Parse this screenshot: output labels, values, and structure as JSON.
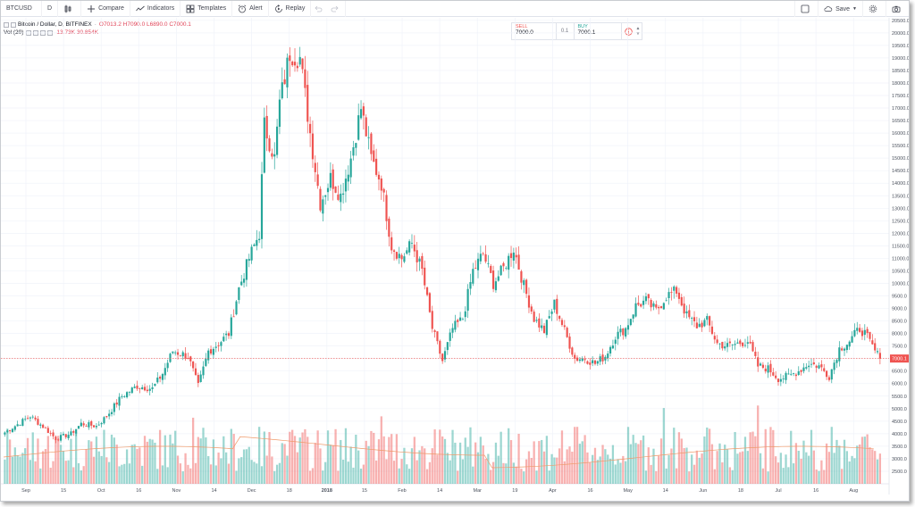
{
  "toolbar": {
    "symbol": "BTCUSD",
    "interval": "D",
    "compare": "Compare",
    "indicators": "Indicators",
    "templates": "Templates",
    "alert": "Alert",
    "replay": "Replay",
    "save": "Save"
  },
  "legend": {
    "title": "Bitcoin / Dollar, D, BITFINEX",
    "open": "O7013.2",
    "high": "H7090.0",
    "low": "L6890.0",
    "close": "C7000.1",
    "vol_label": "Vol (20)",
    "vol_value": "13.73K",
    "vol_ma": "30.854K"
  },
  "trade": {
    "sell_label": "SELL",
    "sell_price": "7000.0",
    "quantity": "0.1",
    "buy_label": "BUY",
    "buy_price": "7000.1"
  },
  "price_tag": "7000.1",
  "colors": {
    "up": "#26a69a",
    "down": "#ef5350",
    "grid": "#f0f3fa",
    "price_line": "#ef5350"
  },
  "chart_data": {
    "type": "candlestick",
    "symbol": "Bitcoin / Dollar, D, BITFINEX",
    "y_ticks": [
      "20500.0",
      "20000.0",
      "19500.0",
      "19000.0",
      "18500.0",
      "18000.0",
      "17500.0",
      "17000.0",
      "16500.0",
      "16000.0",
      "15500.0",
      "15000.0",
      "14500.0",
      "14000.0",
      "13500.0",
      "13000.0",
      "12500.0",
      "12000.0",
      "11500.0",
      "11000.0",
      "10500.0",
      "10000.0",
      "9500.0",
      "9000.0",
      "8500.0",
      "8000.0",
      "7500.0",
      "7000.0",
      "6500.0",
      "6000.0",
      "5500.0",
      "5000.0",
      "4500.0",
      "4000.0",
      "3500.0",
      "3000.0",
      "2500.0"
    ],
    "ylim": [
      2000,
      20600
    ],
    "x_ticks": [
      "Sep",
      "15",
      "Oct",
      "16",
      "Nov",
      "14",
      "Dec",
      "18",
      "2018",
      "15",
      "Feb",
      "14",
      "Mar",
      "19",
      "Apr",
      "16",
      "May",
      "14",
      "Jun",
      "18",
      "Jul",
      "16",
      "Aug"
    ],
    "last_price": 7000.1,
    "close_path": [
      [
        0,
        4050
      ],
      [
        10,
        4700
      ],
      [
        16,
        4200
      ],
      [
        20,
        3800
      ],
      [
        26,
        4000
      ],
      [
        30,
        4400
      ],
      [
        36,
        4300
      ],
      [
        40,
        4700
      ],
      [
        46,
        5500
      ],
      [
        52,
        5900
      ],
      [
        58,
        5800
      ],
      [
        62,
        6400
      ],
      [
        66,
        7300
      ],
      [
        72,
        7100
      ],
      [
        76,
        5900
      ],
      [
        80,
        7300
      ],
      [
        84,
        7600
      ],
      [
        88,
        8000
      ],
      [
        92,
        9800
      ],
      [
        96,
        11000
      ],
      [
        100,
        12000
      ],
      [
        102,
        16300
      ],
      [
        106,
        15000
      ],
      [
        108,
        17200
      ],
      [
        112,
        19200
      ],
      [
        116,
        19000
      ],
      [
        120,
        16000
      ],
      [
        124,
        13200
      ],
      [
        128,
        14200
      ],
      [
        132,
        13500
      ],
      [
        136,
        15000
      ],
      [
        140,
        17000
      ],
      [
        144,
        15000
      ],
      [
        148,
        14000
      ],
      [
        152,
        11500
      ],
      [
        156,
        11000
      ],
      [
        160,
        11600
      ],
      [
        164,
        10500
      ],
      [
        168,
        8200
      ],
      [
        172,
        6900
      ],
      [
        176,
        8200
      ],
      [
        180,
        8600
      ],
      [
        184,
        10500
      ],
      [
        188,
        11200
      ],
      [
        192,
        10000
      ],
      [
        196,
        10600
      ],
      [
        200,
        11400
      ],
      [
        204,
        9900
      ],
      [
        208,
        8600
      ],
      [
        212,
        8100
      ],
      [
        216,
        9200
      ],
      [
        220,
        8100
      ],
      [
        224,
        7000
      ],
      [
        228,
        7000
      ],
      [
        232,
        6800
      ],
      [
        236,
        7100
      ],
      [
        240,
        7900
      ],
      [
        244,
        8200
      ],
      [
        248,
        9100
      ],
      [
        252,
        9300
      ],
      [
        256,
        8900
      ],
      [
        260,
        9500
      ],
      [
        264,
        9700
      ],
      [
        268,
        8700
      ],
      [
        272,
        8300
      ],
      [
        276,
        8500
      ],
      [
        280,
        7600
      ],
      [
        284,
        7500
      ],
      [
        288,
        7600
      ],
      [
        292,
        7700
      ],
      [
        296,
        6700
      ],
      [
        300,
        6600
      ],
      [
        304,
        6200
      ],
      [
        308,
        6300
      ],
      [
        312,
        6500
      ],
      [
        316,
        6800
      ],
      [
        320,
        6700
      ],
      [
        324,
        6300
      ],
      [
        328,
        7400
      ],
      [
        332,
        7700
      ],
      [
        336,
        8200
      ],
      [
        338,
        8000
      ],
      [
        342,
        7300
      ],
      [
        344,
        7000
      ]
    ]
  }
}
